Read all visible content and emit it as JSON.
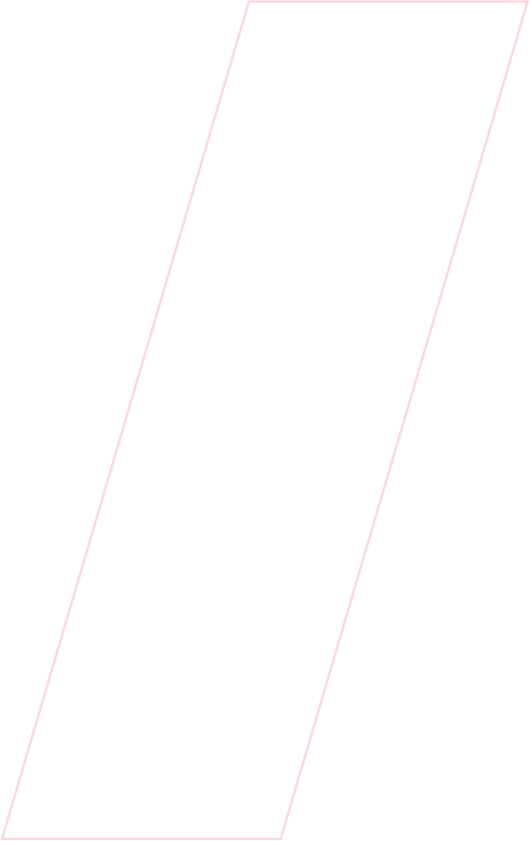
{
  "shape": {
    "kind": "parallelogram-outline",
    "stroke_color": "#fad6db",
    "fill": "none"
  }
}
